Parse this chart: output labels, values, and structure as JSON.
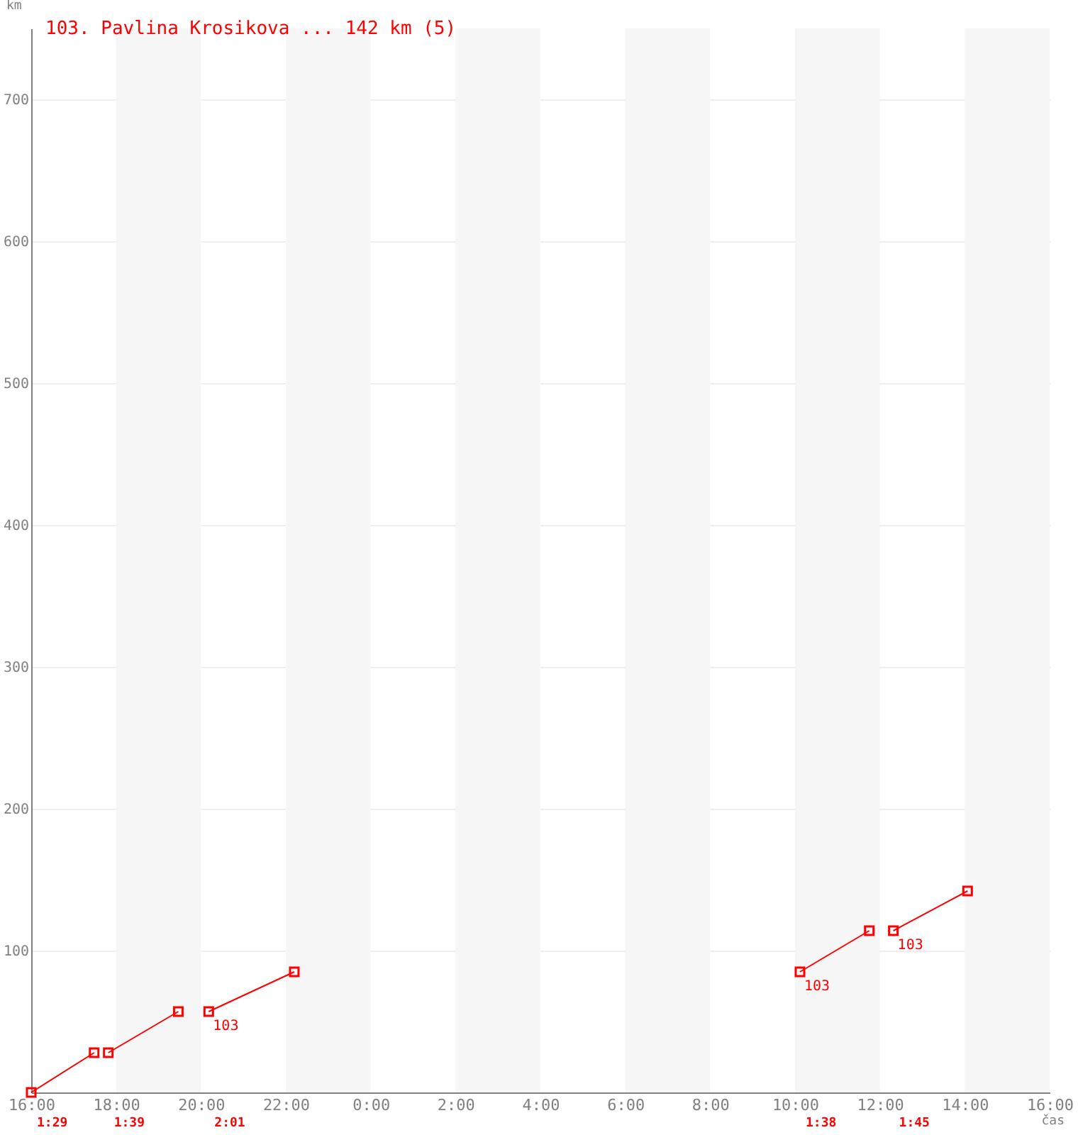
{
  "chart_data": {
    "type": "line",
    "title": "103. Pavlina Krosikova ... 142 km (5)",
    "xlabel": "čas",
    "ylabel": "km",
    "xlim": [
      "--01-01T16:00",
      "--01-02T16:00"
    ],
    "xticks": [
      {
        "value": "--01-01T16:00",
        "label": "16:00"
      },
      {
        "value": "--01-01T18:00",
        "label": "18:00"
      },
      {
        "value": "--01-01T20:00",
        "label": "20:00"
      },
      {
        "value": "--01-01T22:00",
        "label": "22:00"
      },
      {
        "value": "--01-02T00:00",
        "label": "0:00"
      },
      {
        "value": "--01-02T02:00",
        "label": "2:00"
      },
      {
        "value": "--01-02T04:00",
        "label": "4:00"
      },
      {
        "value": "--01-02T06:00",
        "label": "6:00"
      },
      {
        "value": "--01-02T08:00",
        "label": "8:00"
      },
      {
        "value": "--01-02T10:00",
        "label": "10:00"
      },
      {
        "value": "--01-02T12:00",
        "label": "12:00"
      },
      {
        "value": "--01-02T14:00",
        "label": "14:00"
      },
      {
        "value": "--01-02T16:00",
        "label": "16:00"
      }
    ],
    "ylim": [
      0,
      750
    ],
    "yticks": [
      100,
      200,
      300,
      400,
      500,
      600,
      700
    ],
    "series": [
      {
        "color": "#ff0000",
        "x": [
          "--01-01T16:00",
          "--01-01T17:29"
        ],
        "values": [
          0,
          28
        ]
      },
      {
        "color": "#ff0000",
        "x": [
          "--01-01T17:49",
          "--01-01T19:28"
        ],
        "values": [
          28,
          57
        ]
      },
      {
        "color": "#ff0000",
        "x": [
          "--01-01T20:11",
          "--01-01T22:12"
        ],
        "values": [
          57,
          85
        ]
      },
      {
        "color": "#ff0000",
        "x": [
          "--01-02T10:07",
          "--01-02T11:45"
        ],
        "values": [
          85,
          114
        ]
      },
      {
        "color": "#ff0000",
        "x": [
          "--01-02T12:19",
          "--01-02T14:04"
        ],
        "values": [
          114,
          142
        ]
      }
    ],
    "bands": [
      {
        "axis": "x",
        "from": "--01-01T18:00",
        "to": "--01-01T20:00",
        "color": "#f6f6f6"
      },
      {
        "axis": "x",
        "from": "--01-01T22:00",
        "to": "--01-02T00:00",
        "color": "#f6f6f6"
      },
      {
        "axis": "x",
        "from": "--01-02T02:00",
        "to": "--01-02T04:00",
        "color": "#f6f6f6"
      },
      {
        "axis": "x",
        "from": "--01-02T06:00",
        "to": "--01-02T08:00",
        "color": "#f6f6f6"
      },
      {
        "axis": "x",
        "from": "--01-02T10:00",
        "to": "--01-02T12:00",
        "color": "#f6f6f6"
      },
      {
        "axis": "x",
        "from": "--01-02T14:00",
        "to": "--01-02T16:00",
        "color": "#f6f6f6"
      }
    ],
    "annotations": [
      "1:29",
      "1:39",
      "2:01",
      "1:38",
      "1:45",
      {
        "text": "103",
        "x": "--01-01T20:11",
        "y": 57
      },
      {
        "text": "103",
        "x": "--01-02T10:07",
        "y": 85
      },
      {
        "text": "103",
        "x": "--01-02T12:19",
        "y": 114
      }
    ],
    "grid": "y",
    "marker": "square",
    "line_style": "solid"
  }
}
